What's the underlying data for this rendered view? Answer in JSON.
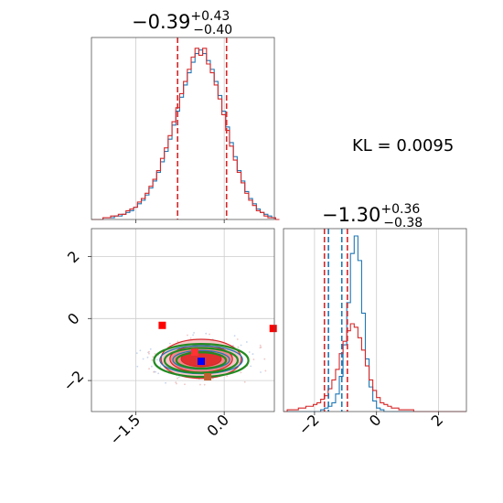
{
  "chart_data": [
    {
      "type": "histogram",
      "panel": "marginal-x",
      "title_main": "−0.39",
      "title_upper": "+0.43",
      "title_lower": "−0.40",
      "xlim": [
        -2.25,
        0.85
      ],
      "bin_start": -2.25,
      "bin_width": 0.065,
      "series": [
        {
          "name": "",
          "color": "#1f77b4",
          "counts": [
            0,
            0,
            0,
            1,
            1,
            1,
            2,
            2,
            3,
            4,
            5,
            7,
            9,
            11,
            14,
            18,
            22,
            27,
            33,
            39,
            46,
            54,
            62,
            70,
            77,
            84,
            90,
            95,
            97,
            95,
            91,
            86,
            79,
            71,
            62,
            53,
            44,
            36,
            28,
            22,
            16,
            12,
            9,
            6,
            4,
            3,
            2,
            1,
            0
          ]
        },
        {
          "name": "",
          "color": "#d62728",
          "counts": [
            0,
            0,
            0,
            1,
            1,
            2,
            2,
            3,
            3,
            5,
            6,
            7,
            10,
            12,
            15,
            19,
            23,
            28,
            35,
            41,
            48,
            56,
            64,
            72,
            79,
            86,
            93,
            98,
            94,
            98,
            89,
            84,
            77,
            69,
            60,
            51,
            42,
            34,
            27,
            21,
            15,
            11,
            8,
            5,
            4,
            2,
            1,
            1,
            0
          ]
        }
      ],
      "quantile_lines": [
        -0.79,
        0.04
      ],
      "quantile_color": "#d62728"
    },
    {
      "type": "histogram",
      "panel": "marginal-y",
      "title_main": "−1.30",
      "title_upper": "+0.36",
      "title_lower": "−0.38",
      "xlim": [
        -3.0,
        2.9
      ],
      "bin_start": -3.0,
      "bin_width": 0.12,
      "series": [
        {
          "name": "",
          "color": "#1f77b4",
          "counts": [
            0,
            0,
            0,
            0,
            0,
            0,
            0,
            0,
            0,
            0,
            1,
            2,
            3,
            5,
            10,
            20,
            38,
            62,
            90,
            100,
            86,
            56,
            30,
            14,
            6,
            2,
            1,
            0,
            0,
            0,
            0,
            0,
            0,
            0,
            0,
            0,
            0,
            0,
            0,
            0,
            0,
            0,
            0,
            0,
            0,
            0,
            0,
            0,
            0
          ]
        },
        {
          "name": "",
          "color": "#d62728",
          "counts": [
            0,
            1,
            1,
            1,
            2,
            2,
            3,
            3,
            4,
            5,
            7,
            9,
            13,
            18,
            24,
            33,
            40,
            46,
            50,
            48,
            42,
            35,
            26,
            18,
            12,
            8,
            5,
            4,
            3,
            2,
            2,
            1,
            1,
            1,
            1,
            0,
            0,
            0,
            0,
            0,
            0,
            0,
            0,
            0,
            0,
            0,
            0,
            0,
            0
          ]
        }
      ],
      "quantile_lines_red": [
        -1.68,
        -0.94
      ],
      "quantile_lines_blue": [
        -1.55,
        -1.12
      ],
      "quantile_color_red": "#d62728",
      "quantile_color_blue": "#1f77b4"
    },
    {
      "type": "contour",
      "panel": "joint",
      "xlim": [
        -2.25,
        0.85
      ],
      "ylim": [
        -3.0,
        2.9
      ],
      "xticks": [
        -1.5,
        0.0
      ],
      "xtick_labels": [
        "−1.5",
        "0.0"
      ],
      "yticks": [
        2,
        0,
        -2
      ],
      "ytick_labels": [
        "2",
        "0",
        "−2"
      ],
      "red_contour_centers": [
        {
          "x": -0.39,
          "y": -1.3
        }
      ],
      "red_contour_levels": [
        {
          "rx": 0.68,
          "ry": 0.63
        },
        {
          "rx": 0.53,
          "ry": 0.43
        },
        {
          "rx": 0.34,
          "ry": 0.25
        }
      ],
      "green_ellipses": [
        {
          "x": -0.39,
          "y": -1.35,
          "rx": 0.42,
          "ry": 0.26
        },
        {
          "x": -0.39,
          "y": -1.35,
          "rx": 0.62,
          "ry": 0.4
        },
        {
          "x": -0.39,
          "y": -1.35,
          "rx": 0.8,
          "ry": 0.53
        }
      ],
      "blue_contours": [
        {
          "x": -0.39,
          "y": -1.33,
          "rx": 0.48,
          "ry": 0.3
        },
        {
          "x": -0.39,
          "y": -1.33,
          "rx": 0.7,
          "ry": 0.45
        }
      ],
      "markers": [
        {
          "x": -1.05,
          "y": -0.22,
          "color": "#ff0000",
          "shape": "square"
        },
        {
          "x": 0.83,
          "y": -0.32,
          "color": "#ff0000",
          "shape": "square"
        },
        {
          "x": -0.5,
          "y": -1.08,
          "color": "#ff3333",
          "shape": "square"
        },
        {
          "x": -0.39,
          "y": -1.38,
          "color": "#0000ff",
          "shape": "square"
        },
        {
          "x": -0.28,
          "y": -1.88,
          "color": "#c06030",
          "shape": "square"
        }
      ]
    },
    {
      "type": "histogram-axis",
      "panel": "marginal-y-axis",
      "xticks": [
        -2,
        0,
        2
      ],
      "xtick_labels": [
        "−2",
        "0",
        "2"
      ]
    }
  ],
  "annotation": {
    "kl_text": "KL = 0.0095"
  }
}
